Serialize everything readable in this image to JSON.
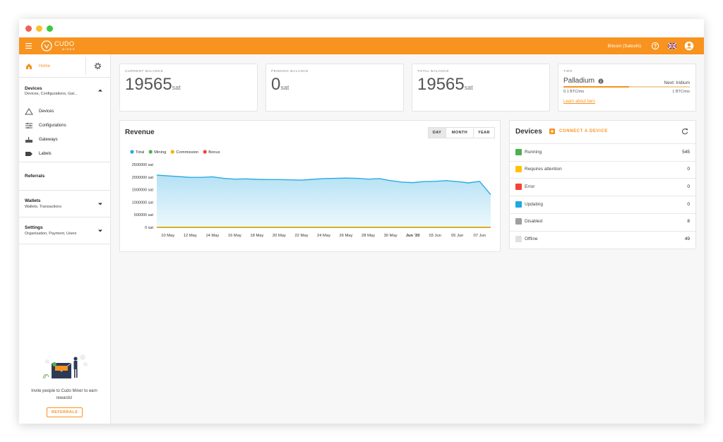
{
  "header": {
    "logo": "CUDO",
    "logo_sub": "MINER",
    "currency": "Bitcoin (Satoshi)"
  },
  "sidebar": {
    "home": "Home",
    "devices": {
      "title": "Devices",
      "subtitle": "Devices, Configurations, Gat...",
      "items": [
        "Devices",
        "Configurations",
        "Gateways",
        "Labels"
      ]
    },
    "referrals": "Referrals",
    "wallets": {
      "title": "Wallets",
      "subtitle": "Wallets, Transactions"
    },
    "settings": {
      "title": "Settings",
      "subtitle": "Organisation, Payment, Users"
    },
    "invite": "Invite people to Cudo Miner to earn rewards!",
    "invite_button": "REFERRALS"
  },
  "balances": [
    {
      "label": "CURRENT BALANCE",
      "value": 19565,
      "unit": "sat"
    },
    {
      "label": "PENDING BALANCE",
      "value": 0,
      "unit": "sat"
    },
    {
      "label": "TOTAL BALANCE",
      "value": 19565,
      "unit": "sat"
    }
  ],
  "tier": {
    "label": "TIER",
    "name": "Palladium",
    "next": "Next: Iridium",
    "min": "0.1 BTC/mo",
    "max": "1 BTC/mo",
    "link": "Learn about tiers"
  },
  "revenue_panel": {
    "ranges": [
      "DAY",
      "MONTH",
      "YEAR"
    ]
  },
  "chart_data": {
    "type": "line",
    "title": "Revenue",
    "categories": [
      null,
      "10 May",
      null,
      "12 May",
      null,
      "14 May",
      null,
      "16 May",
      null,
      "18 May",
      null,
      "20 May",
      null,
      "22 May",
      null,
      "24 May",
      null,
      "26 May",
      null,
      "28 May",
      null,
      "30 May",
      null,
      "Jun '20",
      null,
      "03 Jun",
      null,
      "05 Jun",
      null,
      "07 Jun",
      null
    ],
    "series": [
      {
        "name": "Total",
        "color": "#29abe2",
        "values": [
          2080000,
          2050000,
          2020000,
          1990000,
          1990000,
          2010000,
          1950000,
          1920000,
          1930000,
          1910000,
          1900000,
          1900000,
          1890000,
          1880000,
          1910000,
          1940000,
          1950000,
          1960000,
          1950000,
          1920000,
          1940000,
          1860000,
          1800000,
          1780000,
          1820000,
          1830000,
          1860000,
          1820000,
          1770000,
          1830000,
          1300000
        ]
      },
      {
        "name": "Mining",
        "color": "#4caf50",
        "values": [
          0,
          0,
          0,
          0,
          0,
          0,
          0,
          0,
          0,
          0,
          0,
          0,
          0,
          0,
          0,
          0,
          0,
          0,
          0,
          0,
          0,
          0,
          0,
          0,
          0,
          0,
          0,
          0,
          0,
          0,
          0
        ]
      },
      {
        "name": "Commission",
        "color": "#f5b400",
        "values": [
          0,
          0,
          0,
          0,
          0,
          0,
          0,
          0,
          0,
          0,
          0,
          0,
          0,
          0,
          0,
          0,
          0,
          0,
          0,
          0,
          0,
          0,
          0,
          0,
          0,
          0,
          0,
          0,
          0,
          0,
          0
        ]
      },
      {
        "name": "Bonus",
        "color": "#f44336",
        "values": [
          0,
          0,
          0,
          0,
          0,
          0,
          0,
          0,
          0,
          0,
          0,
          0,
          0,
          0,
          0,
          0,
          0,
          0,
          0,
          0,
          0,
          0,
          0,
          0,
          0,
          0,
          0,
          0,
          0,
          0,
          0
        ]
      }
    ],
    "ylim": [
      0,
      2500000
    ],
    "yticks": [
      {
        "value": 0,
        "label": "0 sat"
      },
      {
        "value": 500000,
        "label": "500000 sat"
      },
      {
        "value": 1000000,
        "label": "1000000 sat"
      },
      {
        "value": 1500000,
        "label": "1500000 sat"
      },
      {
        "value": 2000000,
        "label": "2000000 sat"
      },
      {
        "value": 2500000,
        "label": "2500000 sat"
      }
    ],
    "legend": "top-left",
    "grid": false
  },
  "devices_panel": {
    "title": "Devices",
    "action": "CONNECT A DEVICE",
    "rows": [
      {
        "label": "Running",
        "count": 545,
        "color": "#4caf50"
      },
      {
        "label": "Requires attention",
        "count": 0,
        "color": "#ffc107"
      },
      {
        "label": "Error",
        "count": 0,
        "color": "#f44336"
      },
      {
        "label": "Updating",
        "count": 0,
        "color": "#1fa8e0"
      },
      {
        "label": "Disabled",
        "count": 8,
        "color": "#9e9e9e"
      },
      {
        "label": "Offline",
        "count": 49,
        "color": "#e0e0e0"
      }
    ]
  }
}
